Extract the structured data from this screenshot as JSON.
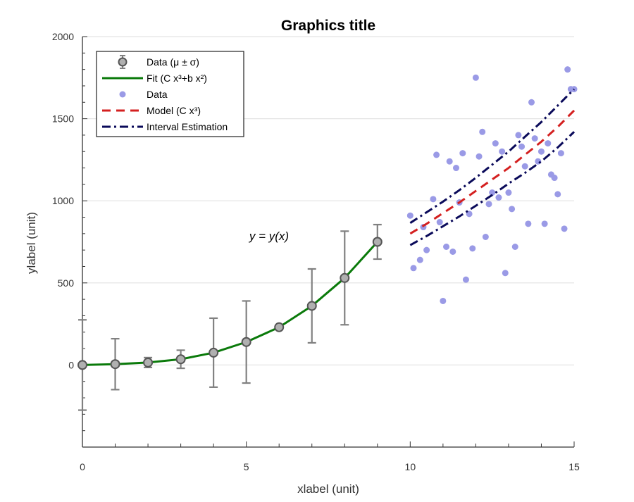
{
  "chart_data": {
    "type": "line",
    "title": "Graphics title",
    "xlabel": "xlabel (unit)",
    "ylabel": "ylabel (unit)",
    "xlim": [
      0,
      15
    ],
    "ylim": [
      -500,
      2000
    ],
    "xticks": [
      0,
      5,
      10,
      15
    ],
    "yticks": [
      0,
      500,
      1000,
      1500,
      2000
    ],
    "grid": "horizontal",
    "legend_position": "top-left",
    "annotation": "y = y(x)",
    "colors": {
      "errorbar": "#808080",
      "marker_fill": "#b0b0b0",
      "marker_edge": "#555555",
      "fit": "#0a7a0a",
      "scatter": "#9a9ae6",
      "model": "#d42020",
      "interval": "#0a0a5a"
    },
    "legend": [
      {
        "label": "Data (μ ± σ)",
        "kind": "errorbar"
      },
      {
        "label": "Fit (C x³+b x²)",
        "kind": "fit"
      },
      {
        "label": "Data",
        "kind": "scatter"
      },
      {
        "label": "Model (C x³)",
        "kind": "model"
      },
      {
        "label": "Interval Estimation",
        "kind": "interval"
      }
    ],
    "series": [
      {
        "name": "Data (μ ± σ)",
        "type": "errorbar",
        "x": [
          0,
          1,
          2,
          3,
          4,
          5,
          6,
          7,
          8,
          9
        ],
        "y": [
          0,
          5,
          15,
          35,
          75,
          140,
          230,
          360,
          530,
          750
        ],
        "err": [
          275,
          155,
          30,
          55,
          210,
          250,
          10,
          225,
          285,
          105
        ]
      },
      {
        "name": "Fit (C x³+b x²)",
        "type": "line",
        "x": [
          0,
          1,
          2,
          3,
          4,
          5,
          6,
          7,
          8,
          9
        ],
        "y": [
          0,
          5,
          15,
          35,
          75,
          140,
          230,
          360,
          530,
          750
        ]
      },
      {
        "name": "Data",
        "type": "scatter",
        "x": [
          10.0,
          10.1,
          10.3,
          10.4,
          10.5,
          10.7,
          10.8,
          10.9,
          11.0,
          11.1,
          11.2,
          11.3,
          11.4,
          11.5,
          11.6,
          11.7,
          11.8,
          11.9,
          12.0,
          12.1,
          12.2,
          12.3,
          12.4,
          12.5,
          12.6,
          12.7,
          12.8,
          12.9,
          13.0,
          13.1,
          13.2,
          13.3,
          13.4,
          13.5,
          13.6,
          13.7,
          13.8,
          13.9,
          14.0,
          14.1,
          14.2,
          14.3,
          14.4,
          14.5,
          14.6,
          14.7,
          14.8,
          14.9,
          15.0
        ],
        "y": [
          910,
          590,
          640,
          840,
          700,
          1010,
          1280,
          870,
          390,
          720,
          1240,
          690,
          1200,
          990,
          1290,
          520,
          920,
          710,
          1750,
          1270,
          1420,
          780,
          980,
          1050,
          1350,
          1020,
          1300,
          560,
          1050,
          950,
          720,
          1400,
          1330,
          1210,
          860,
          1600,
          1380,
          1240,
          1300,
          860,
          1350,
          1160,
          1140,
          1040,
          1290,
          830,
          1800,
          1680,
          1680
        ]
      },
      {
        "name": "Model (C x³)",
        "type": "line",
        "x": [
          10,
          10.5,
          11,
          11.5,
          12,
          12.5,
          13,
          13.5,
          14,
          14.5,
          15
        ],
        "y": [
          800,
          860,
          925,
          990,
          1060,
          1130,
          1200,
          1280,
          1360,
          1450,
          1550
        ]
      },
      {
        "name": "Interval Estimation",
        "type": "line",
        "x": [
          10,
          10.5,
          11,
          11.5,
          12,
          12.5,
          13,
          13.5,
          14,
          14.5,
          15
        ],
        "y": [
          865,
          930,
          995,
          1065,
          1140,
          1220,
          1300,
          1390,
          1480,
          1580,
          1680
        ]
      },
      {
        "type": "line",
        "x": [
          10,
          10.5,
          11,
          11.5,
          12,
          12.5,
          13,
          13.5,
          14,
          14.5,
          15
        ],
        "y": [
          730,
          785,
          845,
          905,
          970,
          1035,
          1105,
          1170,
          1240,
          1325,
          1420
        ]
      }
    ]
  }
}
